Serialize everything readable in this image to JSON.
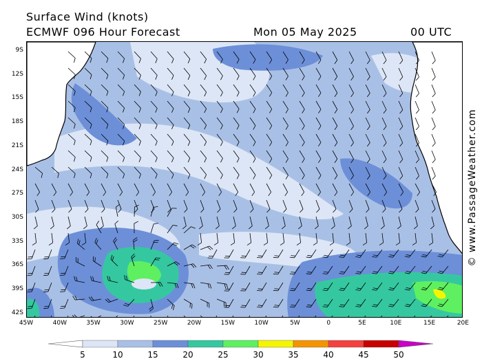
{
  "header": {
    "title": "Surface Wind (knots)",
    "model": "ECMWF 096 Hour Forecast",
    "date": "Mon 05 May 2025",
    "time": "00 UTC"
  },
  "axes": {
    "lat_labels": [
      "9S",
      "12S",
      "15S",
      "18S",
      "21S",
      "24S",
      "27S",
      "30S",
      "33S",
      "36S",
      "39S",
      "42S"
    ],
    "lon_labels": [
      "45W",
      "40W",
      "35W",
      "30W",
      "25W",
      "20W",
      "15W",
      "10W",
      "5W",
      "0",
      "5E",
      "10E",
      "15E",
      "20E"
    ]
  },
  "copyright": "© www.PassageWeather.com",
  "legend": {
    "ticks": [
      "5",
      "10",
      "15",
      "20",
      "25",
      "30",
      "35",
      "40",
      "45",
      "50"
    ],
    "colors": [
      "#ffffff",
      "#dde6f6",
      "#a9c0e6",
      "#6c8fd8",
      "#35c8a0",
      "#5ef061",
      "#f5f500",
      "#f59400",
      "#f54040",
      "#c80000",
      "#c800c8"
    ]
  },
  "map_colors": {
    "land": "#ffffff",
    "coast": "#000000",
    "speed_5_10": "#dde6f6",
    "speed_10_15": "#a9c0e6",
    "speed_15_20": "#6c8fd8",
    "speed_20_25": "#35c8a0",
    "speed_25_30": "#5ef061",
    "speed_30_35": "#f5f500"
  }
}
